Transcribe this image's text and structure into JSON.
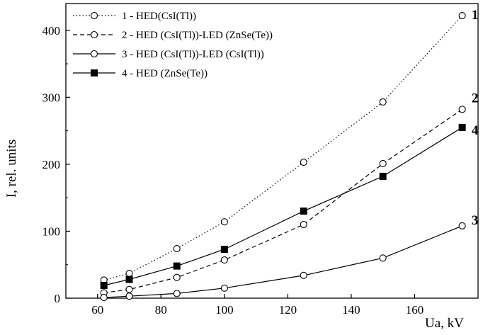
{
  "chart_data": {
    "type": "line",
    "xlabel": "Ua, kV",
    "ylabel": "I, rel. units",
    "xlim": [
      50,
      180
    ],
    "ylim": [
      0,
      440
    ],
    "x_ticks": [
      60,
      80,
      100,
      120,
      140,
      160
    ],
    "y_ticks": [
      0,
      100,
      200,
      300,
      400
    ],
    "legend_position": "top-left",
    "grid": false,
    "series": [
      {
        "name": "1 - HED(CsI(Tl))",
        "tag": "1",
        "style": "dotted",
        "marker": "open-circle",
        "x": [
          62,
          70,
          85,
          100,
          125,
          150,
          175
        ],
        "y": [
          27,
          37,
          74,
          114,
          203,
          293,
          422
        ]
      },
      {
        "name": "2 - HED (CsI(Tl))-LED (ZnSe(Te))",
        "tag": "2",
        "style": "dashed",
        "marker": "open-circle",
        "x": [
          62,
          70,
          85,
          100,
          125,
          150,
          175
        ],
        "y": [
          8,
          13,
          31,
          57,
          110,
          201,
          282
        ]
      },
      {
        "name": "3 - HED (CsI(Tl))-LED (CsI(Tl))",
        "tag": "3",
        "style": "solid",
        "marker": "open-circle",
        "x": [
          62,
          70,
          85,
          100,
          125,
          150,
          175
        ],
        "y": [
          1,
          3,
          7,
          15,
          34,
          60,
          108
        ]
      },
      {
        "name": "4 - HED (ZnSe(Te))",
        "tag": "4",
        "style": "solid",
        "marker": "filled-square",
        "x": [
          62,
          70,
          85,
          100,
          125,
          150,
          175
        ],
        "y": [
          19,
          28,
          48,
          73,
          130,
          182,
          255
        ]
      }
    ]
  }
}
